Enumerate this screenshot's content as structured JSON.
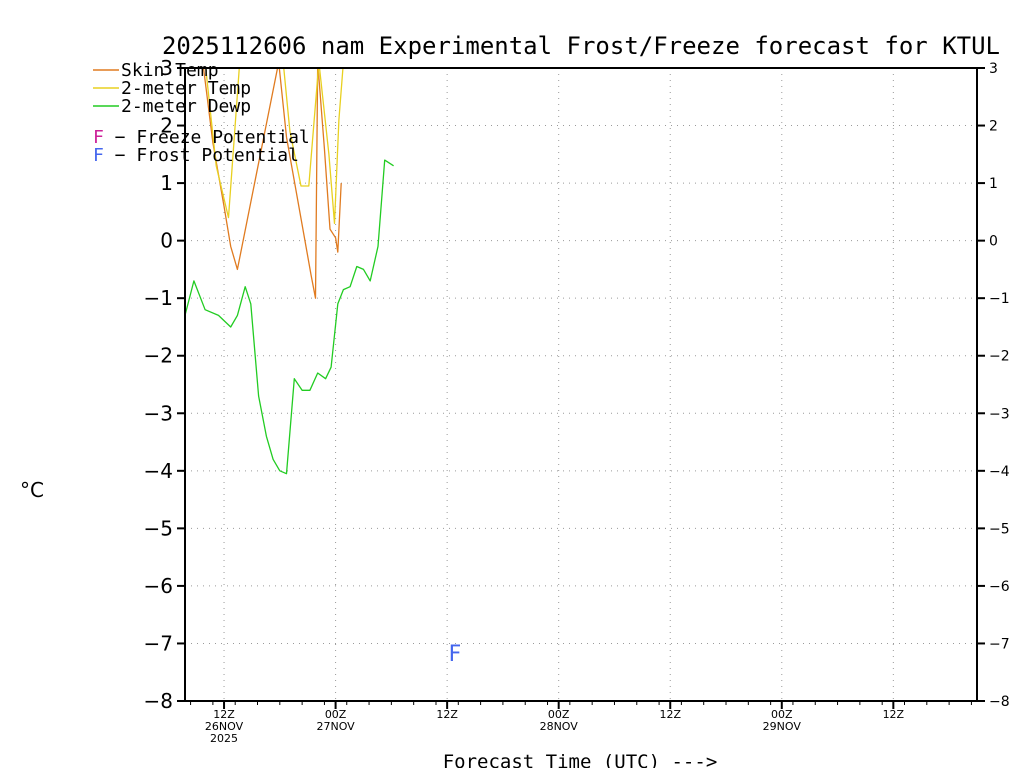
{
  "chart_data": {
    "type": "line",
    "title": "2025112606 nam Experimental Frost/Freeze forecast for KTUL",
    "xlabel": "Forecast Time (UTC) --->",
    "ylabel": "°C",
    "ylim": [
      -8,
      3
    ],
    "xlim": [
      2.5,
      73.5
    ],
    "y_ticks": [
      3,
      2,
      1,
      0,
      -1,
      -2,
      -3,
      -4,
      -5,
      -6,
      -7,
      -8
    ],
    "y_tick_labels": [
      "3",
      "2",
      "1",
      "0",
      "−1",
      "−2",
      "−3",
      "−4",
      "−5",
      "−6",
      "−7",
      "−8"
    ],
    "x_ticks": [
      {
        "x": 6,
        "lines": [
          "12Z",
          "26NOV",
          "2025"
        ]
      },
      {
        "x": 16,
        "lines": [
          "00Z",
          "27NOV"
        ]
      },
      {
        "x": 26,
        "lines": [
          "12Z"
        ]
      },
      {
        "x": 36,
        "lines": [
          "00Z",
          "28NOV"
        ]
      },
      {
        "x": 46,
        "lines": [
          "12Z"
        ]
      },
      {
        "x": 56,
        "lines": [
          "00Z",
          "29NOV"
        ]
      },
      {
        "x": 66,
        "lines": [
          "12Z"
        ]
      }
    ],
    "grid": true,
    "legend": [
      {
        "label": "Skin Temp",
        "color": "#e07b20"
      },
      {
        "label": "2-meter Temp",
        "color": "#e8d020"
      },
      {
        "label": "2-meter Dewp",
        "color": "#22cc22"
      }
    ],
    "potential_legend": [
      {
        "mark": "F",
        "label": " − Freeze Potential",
        "color": "#cc2299"
      },
      {
        "mark": "F",
        "label": " − Frost Potential",
        "color": "#4466ee"
      }
    ],
    "series": [
      {
        "name": "Skin Temp",
        "color": "#e07b20",
        "x": [
          4.1,
          5.0,
          6.0,
          6.6,
          7.2,
          10.9,
          11.6,
          12.7,
          13.8,
          14.2,
          14.4,
          15.0,
          15.5,
          16.0,
          16.2,
          16.5
        ],
        "y": [
          3.1,
          1.7,
          0.6,
          -0.1,
          -0.5,
          3.1,
          1.8,
          0.6,
          -0.6,
          -1.0,
          3.1,
          1.6,
          0.2,
          0.05,
          -0.2,
          1.0
        ]
      },
      {
        "name": "2-meter Temp",
        "color": "#e8d020",
        "x": [
          4.3,
          5.3,
          6.4,
          7.4,
          11.3,
          11.9,
          12.9,
          13.6,
          14.5,
          15.4,
          15.9,
          16.3,
          16.7
        ],
        "y": [
          3.1,
          1.3,
          0.4,
          3.1,
          3.1,
          1.9,
          0.95,
          0.95,
          3.1,
          1.5,
          0.3,
          2.1,
          3.1
        ]
      },
      {
        "name": "2-meter Dewp",
        "color": "#22cc22",
        "x": [
          2.5,
          3.3,
          4.3,
          5.5,
          6.6,
          7.2,
          7.9,
          8.4,
          9.1,
          9.8,
          10.4,
          11.0,
          11.6,
          12.3,
          13.0,
          13.7,
          14.4,
          15.1,
          15.6,
          16.2,
          16.7,
          17.3,
          17.9,
          18.5,
          19.1,
          19.8,
          20.4,
          21.2
        ],
        "y": [
          -1.3,
          -0.7,
          -1.2,
          -1.3,
          -1.5,
          -1.3,
          -0.8,
          -1.1,
          -2.7,
          -3.4,
          -3.8,
          -4.0,
          -4.05,
          -2.4,
          -2.6,
          -2.6,
          -2.3,
          -2.4,
          -2.2,
          -1.1,
          -0.85,
          -0.8,
          -0.45,
          -0.5,
          -0.7,
          -0.1,
          1.4,
          1.3
        ]
      }
    ],
    "annotations": [
      {
        "text": "F",
        "x": 26.7,
        "y": -7.15,
        "color": "#4466ee",
        "kind": "Frost Potential"
      }
    ]
  }
}
